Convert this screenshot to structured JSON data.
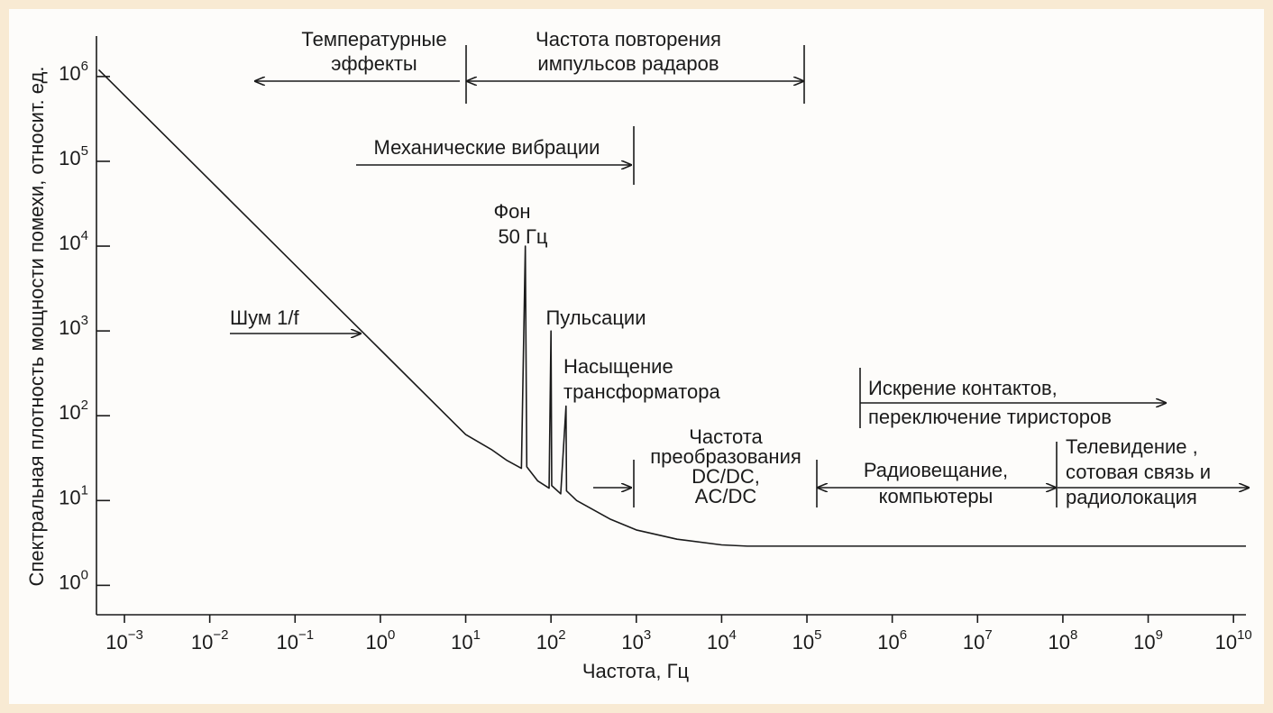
{
  "chart_data": {
    "type": "line",
    "x_label": "Частота, Гц",
    "y_label": "Спектральная плотность мощности помехи, относит. ед.",
    "xscale": "log",
    "yscale": "log",
    "xlim": [
      0.00047,
      14000000000
    ],
    "ylim": [
      0.45,
      3000000
    ],
    "xticks": [
      {
        "value": 0.001,
        "label": "10",
        "exponent": "−3"
      },
      {
        "value": 0.01,
        "label": "10",
        "exponent": "−2"
      },
      {
        "value": 0.1,
        "label": "10",
        "exponent": "−1"
      },
      {
        "value": 1,
        "label": "10",
        "exponent": "0"
      },
      {
        "value": 10,
        "label": "10",
        "exponent": "1"
      },
      {
        "value": 100,
        "label": "10",
        "exponent": "2"
      },
      {
        "value": 1000,
        "label": "10",
        "exponent": "3"
      },
      {
        "value": 10000,
        "label": "10",
        "exponent": "4"
      },
      {
        "value": 100000,
        "label": "10",
        "exponent": "5"
      },
      {
        "value": 1000000,
        "label": "10",
        "exponent": "6"
      },
      {
        "value": 10000000,
        "label": "10",
        "exponent": "7"
      },
      {
        "value": 100000000,
        "label": "10",
        "exponent": "8"
      },
      {
        "value": 1000000000,
        "label": "10",
        "exponent": "9"
      },
      {
        "value": 10000000000,
        "label": "10",
        "exponent": "10"
      }
    ],
    "yticks": [
      {
        "value": 1,
        "label": "10",
        "exponent": "0"
      },
      {
        "value": 10,
        "label": "10",
        "exponent": "1"
      },
      {
        "value": 100,
        "label": "10",
        "exponent": "2"
      },
      {
        "value": 1000,
        "label": "10",
        "exponent": "3"
      },
      {
        "value": 10000,
        "label": "10",
        "exponent": "4"
      },
      {
        "value": 100000,
        "label": "10",
        "exponent": "5"
      },
      {
        "value": 1000000,
        "label": "10",
        "exponent": "6"
      }
    ],
    "series": [
      {
        "color": "#1a1a1a",
        "x": [
          0.0005,
          0.001,
          0.01,
          0.1,
          1,
          10,
          20,
          30,
          45,
          50,
          52,
          70,
          95,
          100,
          102,
          130,
          150,
          152,
          200,
          500,
          1000,
          3000,
          10000,
          20000,
          14000000000
        ],
        "values": [
          1200000,
          600000,
          60000,
          6000,
          600,
          60,
          40,
          30,
          24,
          10000,
          25,
          17,
          14,
          1000,
          15,
          12,
          130,
          13,
          10,
          6,
          4.5,
          3.5,
          3,
          2.9,
          2.9
        ]
      }
    ],
    "annotations": [
      {
        "lines": [
          "Температурные",
          "эффекты"
        ]
      },
      {
        "lines": [
          "Частота повторения",
          "импульсов радаров"
        ]
      },
      {
        "lines": [
          "Механические вибрации"
        ]
      },
      {
        "lines": [
          "Фон",
          "50 Гц"
        ]
      },
      {
        "lines": [
          "Пульсации"
        ]
      },
      {
        "lines": [
          "Насыщение",
          "трансформатора"
        ]
      },
      {
        "lines": [
          "Шум 1/f"
        ]
      },
      {
        "lines": [
          "Искрение контактов,",
          "переключение тиристоров"
        ]
      },
      {
        "lines": [
          "Частота",
          "преобразования",
          "DC/DC,",
          "AC/DC"
        ]
      },
      {
        "lines": [
          "Радиовещание,",
          "компьютеры"
        ]
      },
      {
        "lines": [
          "Телевидение ,",
          "сотовая связь и",
          "радиолокация"
        ]
      }
    ]
  }
}
